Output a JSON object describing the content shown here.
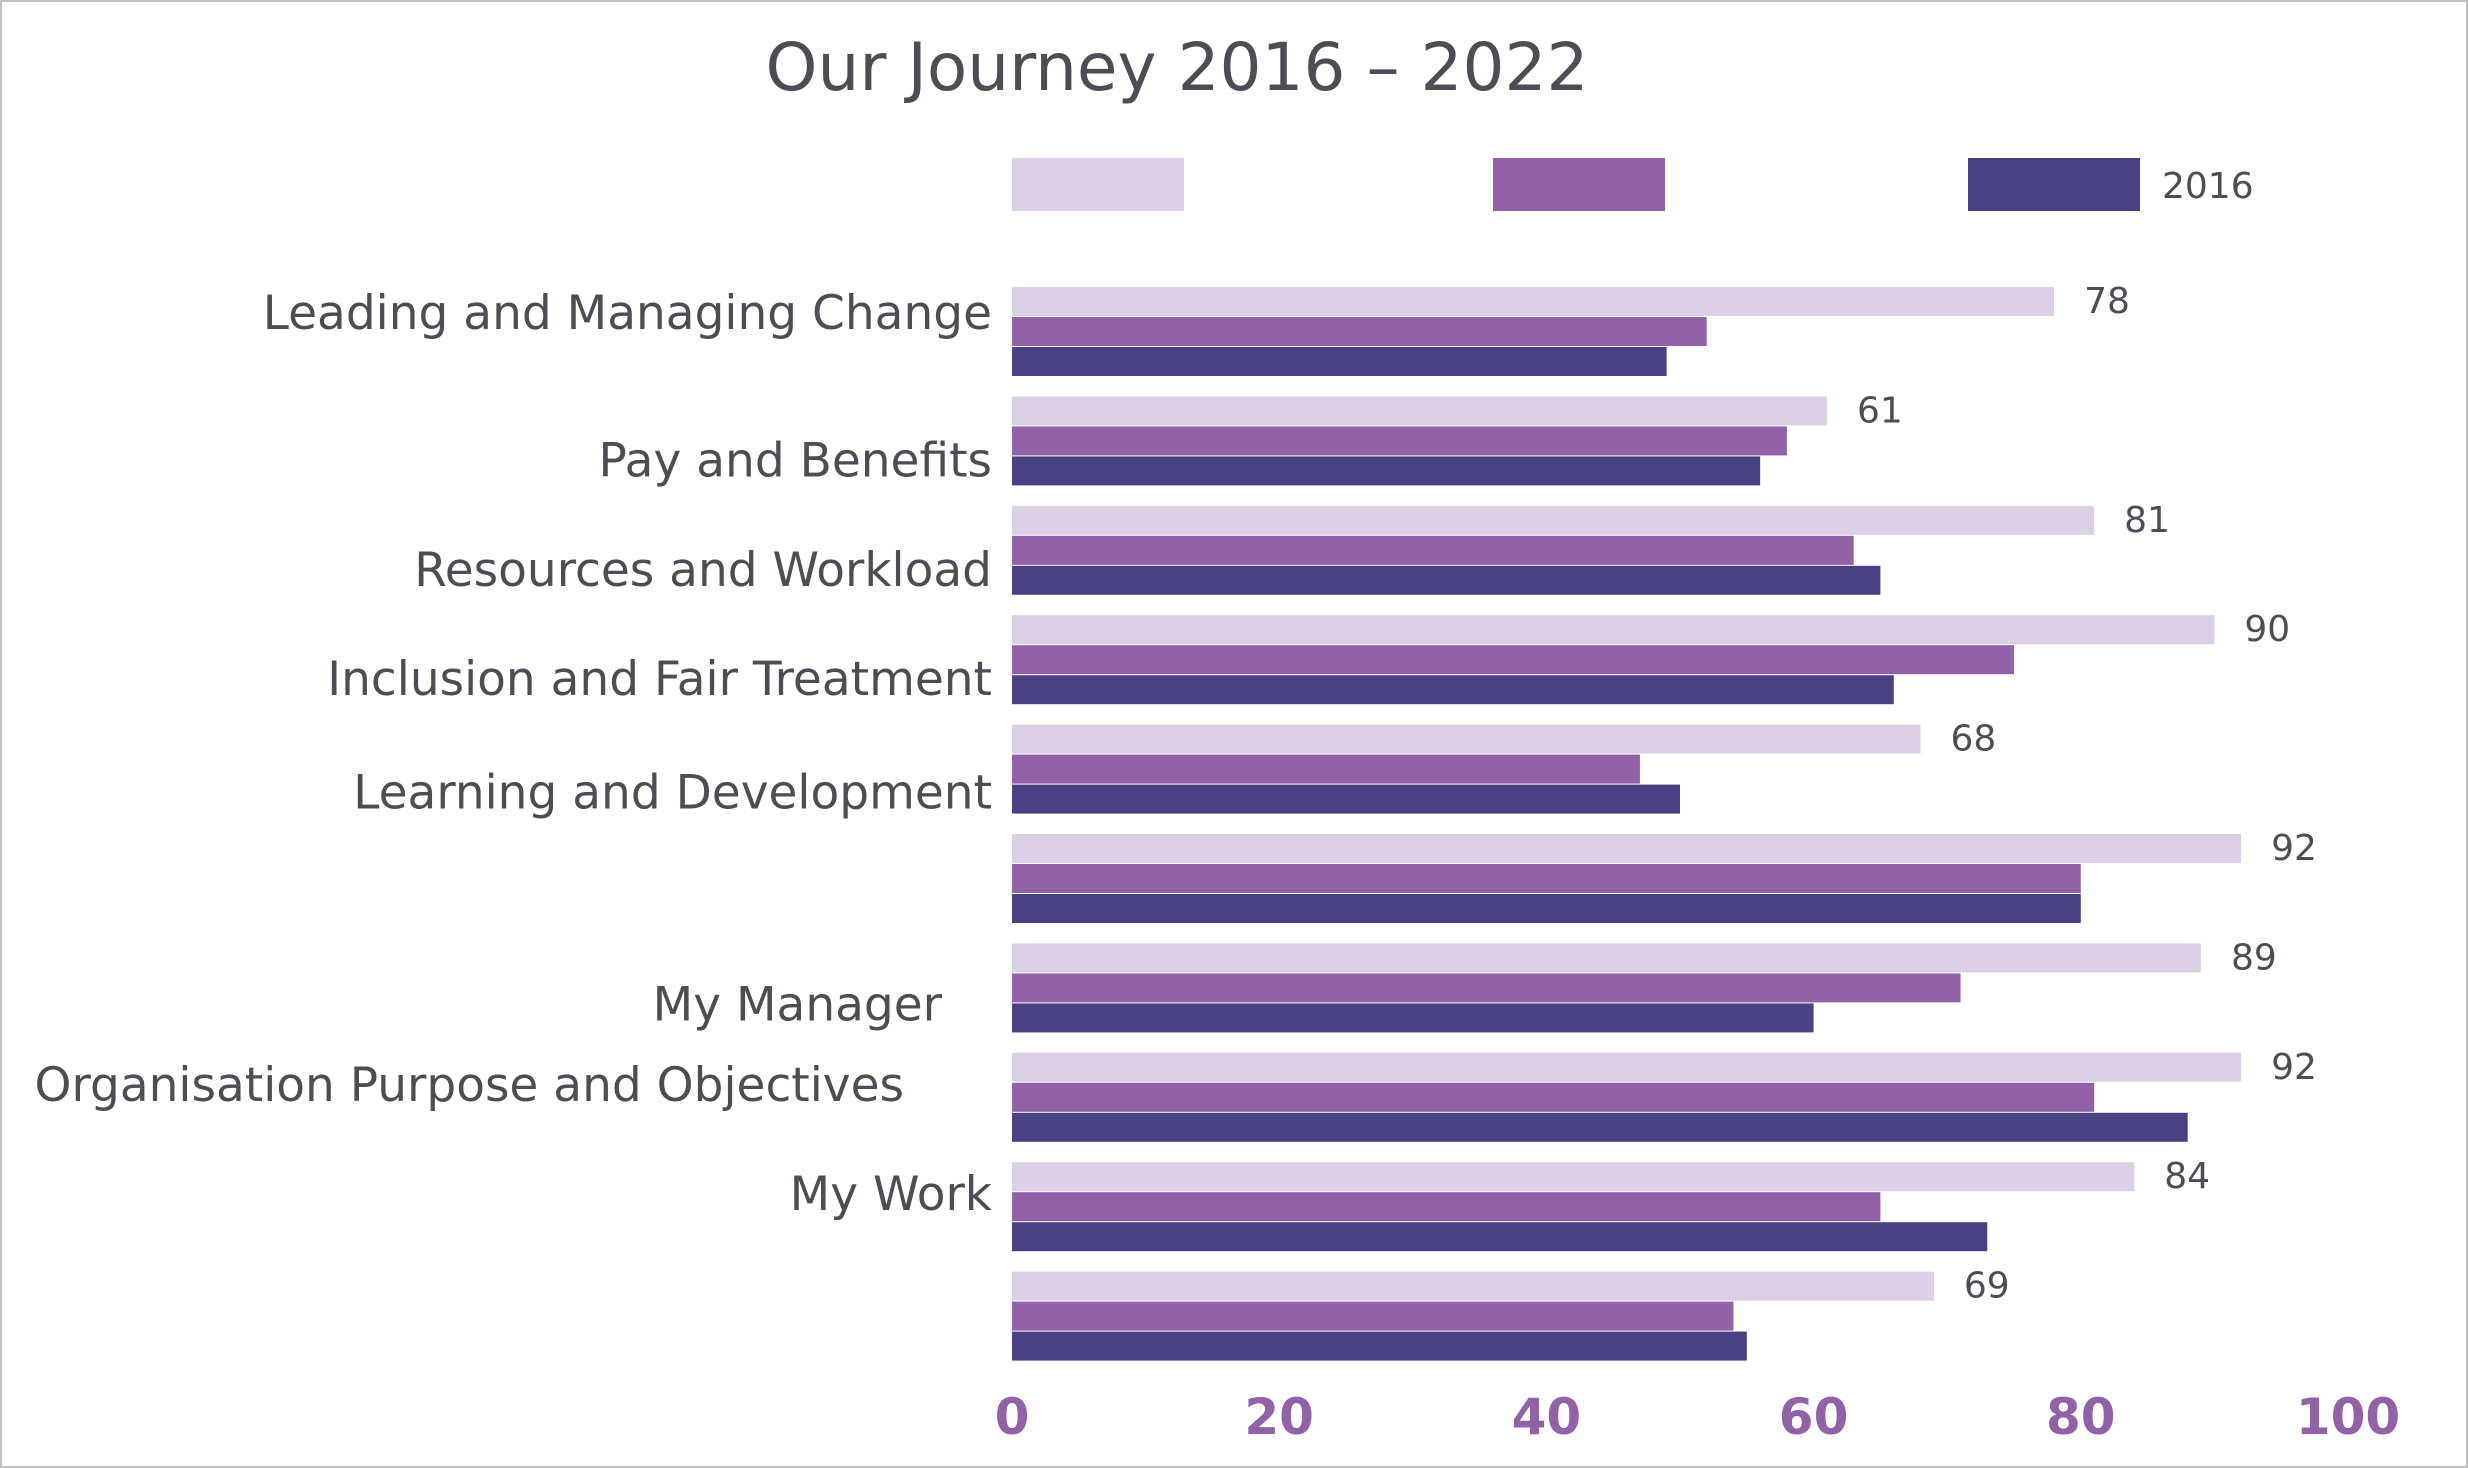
{
  "chart_data": {
    "type": "bar",
    "orientation": "horizontal",
    "title": "Our Journey 2016 – 2022",
    "categories": [
      "Leading and Managing Change",
      "Pay and Benefits",
      "Resources and Workload",
      "Inclusion and Fair Treatment",
      "Learning and Development",
      "",
      "My Manager",
      "Organisation Purpose and Objectives",
      "My Work",
      ""
    ],
    "series": [
      {
        "name": "",
        "color": "#dccfe8",
        "values": [
          78,
          61,
          81,
          90,
          68,
          92,
          89,
          92,
          84,
          69
        ]
      },
      {
        "name": "",
        "color": "#9162a8",
        "values": [
          52,
          58,
          63,
          75,
          47,
          80,
          71,
          81,
          65,
          54
        ]
      },
      {
        "name": "2016",
        "color": "#4a4185",
        "values": [
          49,
          56,
          65,
          66,
          50,
          80,
          60,
          88,
          73,
          55
        ]
      }
    ],
    "data_labels": [
      "78",
      "61",
      "81",
      "90",
      "68",
      "92",
      "89",
      "92",
      "84",
      "69"
    ],
    "xlim": [
      0,
      100
    ],
    "x_ticks": [
      "0",
      "20",
      "40",
      "60",
      "80",
      "100"
    ],
    "tick_color": "#9162a8",
    "grid": false,
    "legend_position": "top"
  }
}
